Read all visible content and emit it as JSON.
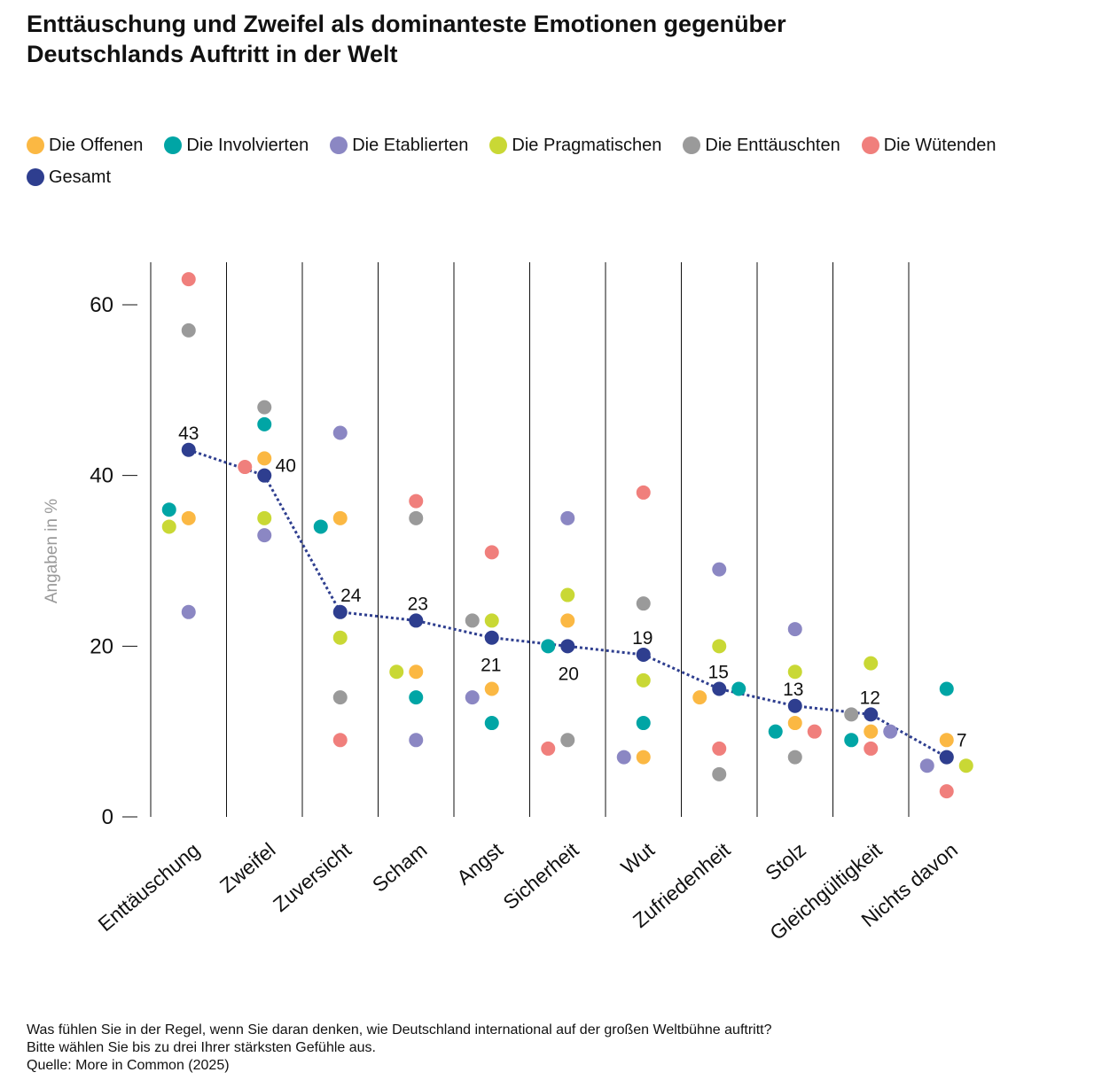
{
  "title_line1": "Enttäuschung und Zweifel als dominanteste Emotionen gegenüber",
  "title_line2": "Deutschlands Auftritt in der Welt",
  "notes": [
    "Was fühlen Sie in der Regel, wenn Sie daran denken, wie Deutschland international auf der großen Weltbühne auftritt?",
    "Bitte wählen Sie bis zu drei Ihrer stärksten Gefühle aus.",
    "Quelle: More in Common (2025)"
  ],
  "chart_data": {
    "type": "scatter",
    "title": "Enttäuschung und Zweifel als dominanteste Emotionen gegenüber Deutschlands Auftritt in der Welt",
    "ylabel": "Angaben in %",
    "xlabel": "",
    "ylim": [
      0,
      60
    ],
    "yticks": [
      0,
      20,
      40,
      60
    ],
    "grid": "vertical separators between categories",
    "legend_placement": "top",
    "categories": [
      "Enttäuschung",
      "Zweifel",
      "Zuversicht",
      "Scham",
      "Angst",
      "Sicherheit",
      "Wut",
      "Zufriedenheit",
      "Stolz",
      "Gleichgültigkeit",
      "Nichts davon"
    ],
    "series": [
      {
        "name": "Die Offenen",
        "color": "#fbb843",
        "values": [
          35,
          42,
          35,
          17,
          15,
          23,
          7,
          14,
          11,
          10,
          9
        ]
      },
      {
        "name": "Die Involvierten",
        "color": "#00a5a5",
        "values": [
          36,
          46,
          34,
          14,
          11,
          20,
          11,
          15,
          10,
          9,
          15
        ]
      },
      {
        "name": "Die Etablierten",
        "color": "#8b87c3",
        "values": [
          24,
          33,
          45,
          9,
          14,
          35,
          7,
          29,
          22,
          10,
          6
        ]
      },
      {
        "name": "Die Pragmatischen",
        "color": "#c9d835",
        "values": [
          34,
          35,
          21,
          17,
          23,
          26,
          16,
          20,
          17,
          18,
          6
        ]
      },
      {
        "name": "Die Enttäuschten",
        "color": "#9a9a9a",
        "values": [
          57,
          48,
          14,
          35,
          23,
          9,
          25,
          5,
          7,
          12,
          7
        ]
      },
      {
        "name": "Die Wütenden",
        "color": "#f07f7c",
        "values": [
          63,
          41,
          9,
          37,
          31,
          8,
          38,
          8,
          10,
          8,
          3
        ]
      },
      {
        "name": "Gesamt",
        "color": "#2e3e8f",
        "values": [
          43,
          40,
          24,
          23,
          21,
          20,
          19,
          15,
          13,
          12,
          7
        ],
        "data_labels": true,
        "line": "dotted"
      }
    ]
  }
}
